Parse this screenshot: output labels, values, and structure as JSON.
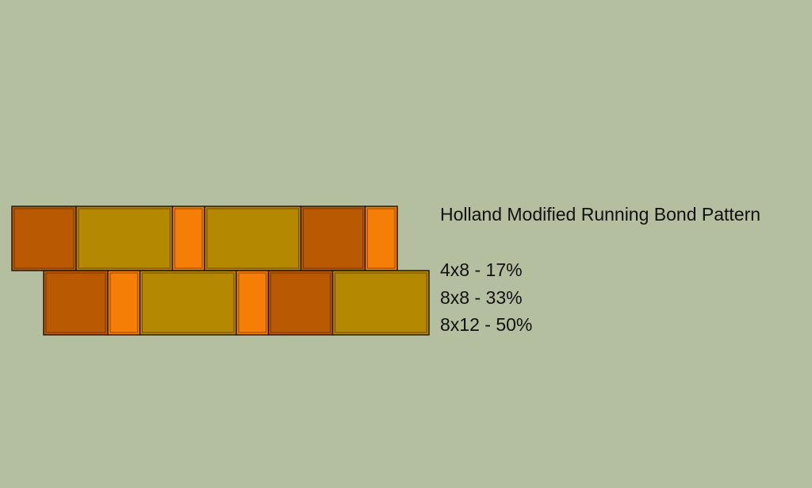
{
  "title": "Holland Modified Running Bond Pattern",
  "mix": [
    {
      "label": "4x8 - 17%",
      "color": "#f57e06"
    },
    {
      "label": "8x8 - 33%",
      "color": "#b95a02"
    },
    {
      "label": "8x12 - 50%",
      "color": "#b48800"
    }
  ],
  "rows": [
    [
      "8x8",
      "8x12",
      "4x8",
      "8x12",
      "8x8",
      "4x8"
    ],
    [
      "8x8",
      "4x8",
      "8x12",
      "4x8",
      "8x8",
      "8x12"
    ]
  ],
  "colors": {
    "background": "#b3bf9e",
    "outline": "#2a1a0a"
  }
}
